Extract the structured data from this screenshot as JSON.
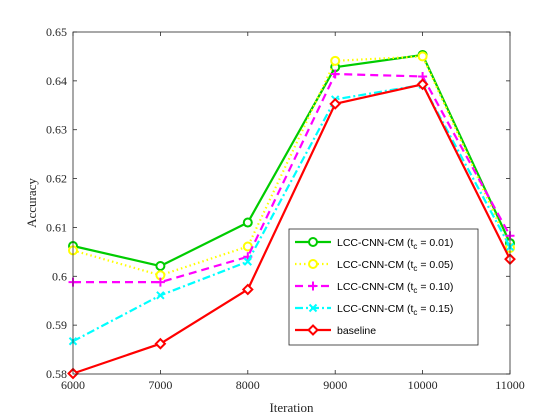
{
  "chart_data": {
    "type": "line",
    "xlabel": "Iteration",
    "ylabel": "Accuracy",
    "x": [
      6000,
      7000,
      8000,
      9000,
      10000,
      11000
    ],
    "xlim": [
      6000,
      11000
    ],
    "ylim": [
      0.58,
      0.65
    ],
    "xticks": [
      "6000",
      "7000",
      "8000",
      "9000",
      "10000",
      "11000"
    ],
    "yticks": [
      "0.58",
      "0.59",
      "0.6",
      "0.61",
      "0.62",
      "0.63",
      "0.64",
      "0.65"
    ],
    "legend_position": "lower-right",
    "series": [
      {
        "name": "LCC-CNN-CM (t_c = 0.01)",
        "legend_main": "LCC-CNN-CM (t",
        "legend_sub": "c",
        "legend_rest": " = 0.01)",
        "color": "#00cc00",
        "dash": "solid",
        "marker": "circle",
        "values": [
          0.6062,
          0.6021,
          0.611,
          0.6428,
          0.6453,
          0.6068
        ]
      },
      {
        "name": "LCC-CNN-CM (t_c = 0.05)",
        "legend_main": "LCC-CNN-CM (t",
        "legend_sub": "c",
        "legend_rest": " = 0.05)",
        "color": "#ffff00",
        "dash": "dotted",
        "marker": "circle",
        "values": [
          0.6053,
          0.6002,
          0.6061,
          0.6441,
          0.645,
          0.6058
        ]
      },
      {
        "name": "LCC-CNN-CM (t_c = 0.10)",
        "legend_main": "LCC-CNN-CM (t",
        "legend_sub": "c",
        "legend_rest": " = 0.10)",
        "color": "#ff00ff",
        "dash": "dashed",
        "marker": "plus",
        "values": [
          0.5988,
          0.5988,
          0.604,
          0.6414,
          0.6409,
          0.6083
        ]
      },
      {
        "name": "LCC-CNN-CM (t_c = 0.15)",
        "legend_main": "LCC-CNN-CM (t",
        "legend_sub": "c",
        "legend_rest": " = 0.15)",
        "color": "#00ffff",
        "dash": "dashdot",
        "marker": "x",
        "values": [
          0.5867,
          0.5961,
          0.603,
          0.6362,
          0.6392,
          0.606
        ]
      },
      {
        "name": "baseline",
        "legend_main": "baseline",
        "legend_sub": "",
        "legend_rest": "",
        "color": "#ff0000",
        "dash": "solid",
        "marker": "diamond",
        "values": [
          0.5801,
          0.5862,
          0.5973,
          0.6353,
          0.6393,
          0.6035
        ]
      }
    ]
  }
}
